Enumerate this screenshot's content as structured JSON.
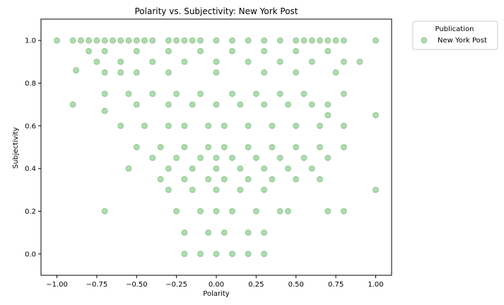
{
  "chart_data": {
    "type": "scatter",
    "title": "Polarity vs. Subjectivity: New York Post",
    "xlabel": "Polarity",
    "ylabel": "Subjectivity",
    "xlim": [
      -1.1,
      1.1
    ],
    "ylim": [
      -0.1,
      1.1
    ],
    "xticks": [
      -1.0,
      -0.75,
      -0.5,
      -0.25,
      0.0,
      0.25,
      0.5,
      0.75,
      1.0
    ],
    "xtick_labels": [
      "−1.00",
      "−0.75",
      "−0.50",
      "−0.25",
      "0.00",
      "0.25",
      "0.50",
      "0.75",
      "1.00"
    ],
    "yticks": [
      0.0,
      0.2,
      0.4,
      0.6,
      0.8,
      1.0
    ],
    "ytick_labels": [
      "0.0",
      "0.2",
      "0.4",
      "0.6",
      "0.8",
      "1.0"
    ],
    "grid": false,
    "legend": {
      "title": "Publication",
      "placement": "outside-upper-right",
      "entries": [
        "New York Post"
      ]
    },
    "series": [
      {
        "name": "New York Post",
        "color": "#008000",
        "alpha": 0.3,
        "marker": "circle",
        "x": [
          -1.0,
          -0.9,
          -0.85,
          -0.8,
          -0.75,
          -0.7,
          -0.65,
          -0.6,
          -0.55,
          -0.5,
          -0.45,
          -0.4,
          -0.3,
          -0.25,
          -0.2,
          -0.15,
          -0.1,
          0.0,
          0.1,
          0.2,
          0.3,
          0.4,
          0.5,
          0.55,
          0.6,
          0.65,
          0.7,
          0.75,
          0.8,
          1.0,
          -0.8,
          -0.75,
          -0.7,
          -0.6,
          -0.5,
          -0.4,
          -0.3,
          -0.2,
          -0.1,
          0.0,
          0.1,
          0.2,
          0.3,
          0.4,
          0.5,
          0.6,
          0.7,
          0.8,
          0.9,
          -0.88,
          -0.7,
          -0.6,
          -0.5,
          -0.3,
          0.0,
          0.3,
          0.5,
          0.75,
          -0.9,
          -0.7,
          -0.55,
          -0.4,
          -0.25,
          -0.1,
          0.1,
          0.25,
          0.4,
          0.55,
          0.7,
          0.8,
          1.0,
          -0.7,
          -0.5,
          -0.3,
          -0.15,
          0.0,
          0.15,
          0.3,
          0.45,
          0.6,
          0.7,
          -0.6,
          -0.45,
          -0.3,
          -0.2,
          -0.05,
          0.05,
          0.2,
          0.35,
          0.5,
          0.65,
          0.8,
          -0.5,
          -0.35,
          -0.2,
          -0.05,
          0.05,
          0.2,
          0.35,
          0.5,
          0.65,
          0.8,
          -0.4,
          -0.25,
          -0.1,
          0.0,
          0.1,
          0.25,
          0.4,
          0.55,
          0.7,
          -0.55,
          -0.3,
          -0.15,
          0.0,
          0.15,
          0.3,
          0.45,
          0.6,
          1.0,
          -0.35,
          -0.2,
          -0.05,
          0.05,
          0.2,
          0.35,
          0.5,
          0.65,
          -0.7,
          -0.3,
          -0.15,
          0.0,
          0.15,
          0.3,
          0.45,
          0.7,
          0.8,
          -0.25,
          -0.1,
          0.0,
          0.1,
          0.25,
          0.4,
          -0.2,
          -0.05,
          0.05,
          0.2,
          0.3,
          -0.2,
          -0.1,
          0.0,
          0.1,
          0.2,
          0.3
        ],
        "y": [
          1.0,
          1.0,
          1.0,
          1.0,
          1.0,
          1.0,
          1.0,
          1.0,
          1.0,
          1.0,
          1.0,
          1.0,
          1.0,
          1.0,
          1.0,
          1.0,
          1.0,
          1.0,
          1.0,
          1.0,
          1.0,
          1.0,
          1.0,
          1.0,
          1.0,
          1.0,
          1.0,
          1.0,
          1.0,
          1.0,
          0.95,
          0.9,
          0.95,
          0.9,
          0.95,
          0.9,
          0.95,
          0.9,
          0.95,
          0.9,
          0.95,
          0.9,
          0.95,
          0.9,
          0.95,
          0.9,
          0.95,
          0.9,
          0.9,
          0.86,
          0.85,
          0.85,
          0.85,
          0.85,
          0.85,
          0.85,
          0.85,
          0.85,
          0.7,
          0.75,
          0.75,
          0.75,
          0.75,
          0.75,
          0.75,
          0.75,
          0.75,
          0.75,
          0.7,
          0.75,
          0.65,
          0.67,
          0.7,
          0.7,
          0.7,
          0.7,
          0.7,
          0.7,
          0.7,
          0.7,
          0.65,
          0.6,
          0.6,
          0.6,
          0.6,
          0.6,
          0.6,
          0.6,
          0.6,
          0.6,
          0.6,
          0.6,
          0.5,
          0.5,
          0.5,
          0.5,
          0.5,
          0.5,
          0.5,
          0.5,
          0.5,
          0.5,
          0.45,
          0.45,
          0.45,
          0.45,
          0.45,
          0.45,
          0.45,
          0.45,
          0.45,
          0.4,
          0.4,
          0.4,
          0.4,
          0.4,
          0.4,
          0.4,
          0.4,
          0.3,
          0.35,
          0.35,
          0.35,
          0.35,
          0.35,
          0.35,
          0.35,
          0.35,
          0.2,
          0.3,
          0.3,
          0.3,
          0.3,
          0.3,
          0.2,
          0.2,
          0.2,
          0.2,
          0.2,
          0.2,
          0.2,
          0.2,
          0.2,
          0.1,
          0.1,
          0.1,
          0.1,
          0.1,
          0.0,
          0.0,
          0.0,
          0.0,
          0.0,
          0.0
        ]
      }
    ]
  }
}
